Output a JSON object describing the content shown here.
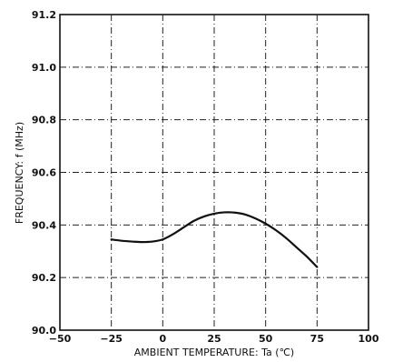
{
  "chart_data": {
    "type": "line",
    "title": "",
    "xlabel": "AMBIENT TEMPERATURE: Ta (℃)",
    "ylabel": "FREQUENCY: f (MHz)",
    "xlim": [
      -50,
      100
    ],
    "ylim": [
      90.0,
      91.2
    ],
    "x_ticks": [
      -50,
      -25,
      0,
      25,
      50,
      75,
      100
    ],
    "x_tick_labels": [
      "−50",
      "−25",
      "0",
      "25",
      "50",
      "75",
      "100"
    ],
    "y_ticks": [
      90.0,
      90.2,
      90.4,
      90.6,
      90.8,
      91.0,
      91.2
    ],
    "y_tick_labels": [
      "90.0",
      "90.2",
      "90.4",
      "90.6",
      "90.8",
      "91.0",
      "91.2"
    ],
    "grid": true,
    "series": [
      {
        "x": [
          -25,
          -20,
          -15,
          -10,
          -5,
          0,
          5,
          10,
          15,
          20,
          25,
          30,
          35,
          40,
          45,
          50,
          55,
          60,
          65,
          70,
          75
        ],
        "y": [
          90.345,
          90.34,
          90.337,
          90.335,
          90.337,
          90.345,
          90.365,
          90.39,
          90.415,
          90.432,
          90.443,
          90.448,
          90.447,
          90.44,
          90.425,
          90.405,
          90.38,
          90.35,
          90.315,
          90.28,
          90.24
        ]
      }
    ]
  }
}
